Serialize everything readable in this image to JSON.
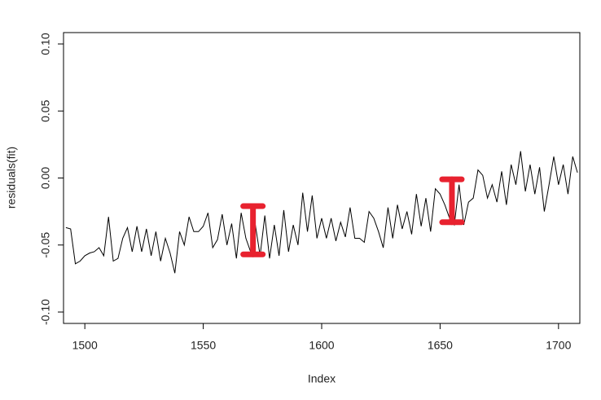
{
  "chart_data": {
    "type": "line",
    "xlabel": "Index",
    "ylabel": "residuals(fit)",
    "x": [
      1492,
      1494,
      1496,
      1498,
      1500,
      1502,
      1504,
      1506,
      1508,
      1510,
      1512,
      1514,
      1516,
      1518,
      1520,
      1522,
      1524,
      1526,
      1528,
      1530,
      1532,
      1534,
      1536,
      1538,
      1540,
      1542,
      1544,
      1546,
      1548,
      1550,
      1552,
      1554,
      1556,
      1558,
      1560,
      1562,
      1564,
      1566,
      1568,
      1570,
      1572,
      1574,
      1576,
      1578,
      1580,
      1582,
      1584,
      1586,
      1588,
      1590,
      1592,
      1594,
      1596,
      1598,
      1600,
      1602,
      1604,
      1606,
      1608,
      1610,
      1612,
      1614,
      1616,
      1618,
      1620,
      1622,
      1624,
      1626,
      1628,
      1630,
      1632,
      1634,
      1636,
      1638,
      1640,
      1642,
      1644,
      1646,
      1648,
      1650,
      1652,
      1654,
      1656,
      1658,
      1660,
      1662,
      1664,
      1666,
      1668,
      1670,
      1672,
      1674,
      1676,
      1678,
      1680,
      1682,
      1684,
      1686,
      1688,
      1690,
      1692,
      1694,
      1696,
      1698,
      1700,
      1702,
      1704,
      1706,
      1708
    ],
    "values": [
      -0.037,
      -0.038,
      -0.064,
      -0.062,
      -0.058,
      -0.056,
      -0.055,
      -0.052,
      -0.058,
      -0.029,
      -0.062,
      -0.06,
      -0.045,
      -0.037,
      -0.055,
      -0.036,
      -0.055,
      -0.038,
      -0.058,
      -0.04,
      -0.062,
      -0.045,
      -0.056,
      -0.071,
      -0.04,
      -0.05,
      -0.029,
      -0.04,
      -0.04,
      -0.036,
      -0.026,
      -0.052,
      -0.046,
      -0.027,
      -0.05,
      -0.034,
      -0.06,
      -0.026,
      -0.045,
      -0.055,
      -0.035,
      -0.058,
      -0.028,
      -0.06,
      -0.035,
      -0.058,
      -0.024,
      -0.055,
      -0.035,
      -0.05,
      -0.011,
      -0.04,
      -0.013,
      -0.045,
      -0.03,
      -0.045,
      -0.03,
      -0.047,
      -0.033,
      -0.044,
      -0.022,
      -0.045,
      -0.045,
      -0.048,
      -0.025,
      -0.03,
      -0.04,
      -0.052,
      -0.022,
      -0.045,
      -0.02,
      -0.038,
      -0.025,
      -0.042,
      -0.012,
      -0.036,
      -0.015,
      -0.04,
      -0.008,
      -0.012,
      -0.02,
      -0.03,
      -0.035,
      -0.005,
      -0.035,
      -0.018,
      -0.015,
      0.006,
      0.002,
      -0.015,
      -0.005,
      -0.018,
      0.005,
      -0.02,
      0.01,
      -0.005,
      0.02,
      -0.01,
      0.01,
      -0.012,
      0.008,
      -0.025,
      -0.005,
      0.016,
      -0.005,
      0.01,
      -0.012,
      0.016,
      0.004
    ],
    "color": "#000000",
    "xlim": [
      1491,
      1709
    ],
    "xticks": [
      1500,
      1550,
      1600,
      1650,
      1700
    ],
    "ylim": [
      -0.1085,
      0.1085
    ],
    "yticks": [
      {
        "value": -0.1,
        "label": "-0.10"
      },
      -0.05,
      {
        "value": 0,
        "label": "0.00"
      },
      0.05,
      {
        "value": 0.1,
        "label": "0.10"
      }
    ],
    "highlights": [
      {
        "x": 1571,
        "low": -0.057,
        "high": -0.021
      },
      {
        "x": 1655,
        "low": -0.033,
        "high": -0.001
      }
    ],
    "highlight_color": "#e8222f"
  }
}
